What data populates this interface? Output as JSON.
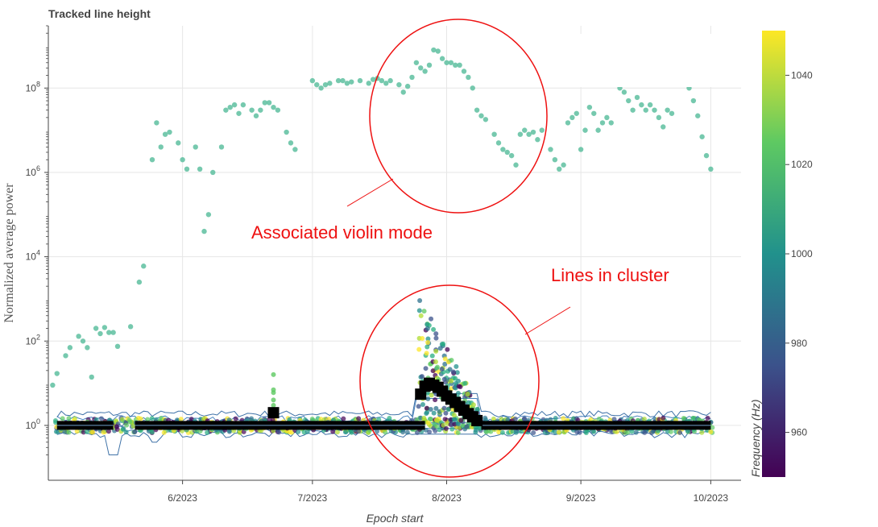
{
  "chart_data": {
    "type": "scatter",
    "title": "Tracked line height",
    "xlabel": "Epoch start",
    "ylabel": "Normalized average power",
    "y_scale": "log",
    "ylim": [
      0.05,
      3000000000.0
    ],
    "xlim": [
      "2023-05-01",
      "2023-10-08"
    ],
    "x_ticks": [
      {
        "date": "2023-06-01",
        "label": "6/2023"
      },
      {
        "date": "2023-07-01",
        "label": "7/2023"
      },
      {
        "date": "2023-08-01",
        "label": "8/2023"
      },
      {
        "date": "2023-09-01",
        "label": "9/2023"
      },
      {
        "date": "2023-10-01",
        "label": "10/2023"
      }
    ],
    "y_ticks": [
      {
        "value": 1,
        "base": "10",
        "exp": "0"
      },
      {
        "value": 100,
        "base": "10",
        "exp": "2"
      },
      {
        "value": 10000,
        "base": "10",
        "exp": "4"
      },
      {
        "value": 1000000,
        "base": "10",
        "exp": "6"
      },
      {
        "value": 100000000,
        "base": "10",
        "exp": "8"
      }
    ],
    "grid": true,
    "colorbar": {
      "label": "Frequency (Hz)",
      "range": [
        950,
        1050
      ],
      "ticks": [
        "960",
        "980",
        "1000",
        "1020",
        "1040"
      ],
      "colormap": [
        "#440154",
        "#3b528b",
        "#21918c",
        "#5ec962",
        "#fde725"
      ]
    },
    "violin_mode_series": {
      "color": "#5ec0a0",
      "points": [
        [
          "2023-05-02",
          9
        ],
        [
          "2023-05-03",
          17
        ],
        [
          "2023-05-05",
          45
        ],
        [
          "2023-05-06",
          70
        ],
        [
          "2023-05-08",
          130
        ],
        [
          "2023-05-09",
          100
        ],
        [
          "2023-05-10",
          70
        ],
        [
          "2023-05-11",
          14
        ],
        [
          "2023-05-12",
          200
        ],
        [
          "2023-05-13",
          150
        ],
        [
          "2023-05-14",
          210
        ],
        [
          "2023-05-15",
          160
        ],
        [
          "2023-05-16",
          160
        ],
        [
          "2023-05-17",
          75
        ],
        [
          "2023-05-20",
          220
        ],
        [
          "2023-05-22",
          2500
        ],
        [
          "2023-05-23",
          6000
        ],
        [
          "2023-05-25",
          2000000.0
        ],
        [
          "2023-05-26",
          15000000.0
        ],
        [
          "2023-05-27",
          4000000.0
        ],
        [
          "2023-05-28",
          8000000.0
        ],
        [
          "2023-05-29",
          9000000.0
        ],
        [
          "2023-05-31",
          5000000.0
        ],
        [
          "2023-06-01",
          2000000.0
        ],
        [
          "2023-06-02",
          1200000.0
        ],
        [
          "2023-06-04",
          4000000.0
        ],
        [
          "2023-06-05",
          1200000.0
        ],
        [
          "2023-06-06",
          40000.0
        ],
        [
          "2023-06-07",
          100000.0
        ],
        [
          "2023-06-08",
          1000000.0
        ],
        [
          "2023-06-10",
          4000000.0
        ],
        [
          "2023-06-11",
          30000000.0
        ],
        [
          "2023-06-12",
          35000000.0
        ],
        [
          "2023-06-13",
          40000000.0
        ],
        [
          "2023-06-14",
          25000000.0
        ],
        [
          "2023-06-15",
          40000000.0
        ],
        [
          "2023-06-17",
          30000000.0
        ],
        [
          "2023-06-18",
          22000000.0
        ],
        [
          "2023-06-19",
          30000000.0
        ],
        [
          "2023-06-20",
          45000000.0
        ],
        [
          "2023-06-21",
          45000000.0
        ],
        [
          "2023-06-22",
          35000000.0
        ],
        [
          "2023-06-23",
          30000000.0
        ],
        [
          "2023-06-25",
          9000000.0
        ],
        [
          "2023-06-26",
          5000000.0
        ],
        [
          "2023-06-27",
          3500000.0
        ],
        [
          "2023-07-01",
          150000000.0
        ],
        [
          "2023-07-02",
          120000000.0
        ],
        [
          "2023-07-03",
          100000000.0
        ],
        [
          "2023-07-04",
          120000000.0
        ],
        [
          "2023-07-05",
          130000000.0
        ],
        [
          "2023-07-07",
          150000000.0
        ],
        [
          "2023-07-08",
          150000000.0
        ],
        [
          "2023-07-09",
          130000000.0
        ],
        [
          "2023-07-10",
          140000000.0
        ],
        [
          "2023-07-12",
          150000000.0
        ],
        [
          "2023-07-14",
          130000000.0
        ],
        [
          "2023-07-15",
          160000000.0
        ],
        [
          "2023-07-16",
          170000000.0
        ],
        [
          "2023-07-17",
          150000000.0
        ],
        [
          "2023-07-18",
          130000000.0
        ],
        [
          "2023-07-19",
          150000000.0
        ],
        [
          "2023-07-21",
          120000000.0
        ],
        [
          "2023-07-22",
          80000000.0
        ],
        [
          "2023-07-23",
          110000000.0
        ],
        [
          "2023-07-24",
          180000000.0
        ],
        [
          "2023-07-25",
          400000000.0
        ],
        [
          "2023-07-26",
          300000000.0
        ],
        [
          "2023-07-27",
          250000000.0
        ],
        [
          "2023-07-28",
          350000000.0
        ],
        [
          "2023-07-29",
          800000000.0
        ],
        [
          "2023-07-30",
          750000000.0
        ],
        [
          "2023-07-31",
          500000000.0
        ],
        [
          "2023-08-01",
          400000000.0
        ],
        [
          "2023-08-02",
          400000000.0
        ],
        [
          "2023-08-03",
          350000000.0
        ],
        [
          "2023-08-04",
          350000000.0
        ],
        [
          "2023-08-05",
          250000000.0
        ],
        [
          "2023-08-06",
          180000000.0
        ],
        [
          "2023-08-07",
          100000000.0
        ],
        [
          "2023-08-08",
          30000000.0
        ],
        [
          "2023-08-09",
          22000000.0
        ],
        [
          "2023-08-10",
          18000000.0
        ],
        [
          "2023-08-12",
          8000000.0
        ],
        [
          "2023-08-13",
          5000000.0
        ],
        [
          "2023-08-14",
          3500000.0
        ],
        [
          "2023-08-15",
          3000000.0
        ],
        [
          "2023-08-16",
          2500000.0
        ],
        [
          "2023-08-17",
          1500000.0
        ],
        [
          "2023-08-18",
          8000000.0
        ],
        [
          "2023-08-19",
          10000000.0
        ],
        [
          "2023-08-20",
          8000000.0
        ],
        [
          "2023-08-21",
          9000000.0
        ],
        [
          "2023-08-22",
          6000000.0
        ],
        [
          "2023-08-23",
          10000000.0
        ],
        [
          "2023-08-25",
          3500000.0
        ],
        [
          "2023-08-26",
          2000000.0
        ],
        [
          "2023-08-27",
          1200000.0
        ],
        [
          "2023-08-28",
          1500000.0
        ],
        [
          "2023-08-29",
          15000000.0
        ],
        [
          "2023-08-30",
          20000000.0
        ],
        [
          "2023-08-31",
          25000000.0
        ],
        [
          "2023-09-01",
          3500000.0
        ],
        [
          "2023-09-02",
          10000000.0
        ],
        [
          "2023-09-03",
          35000000.0
        ],
        [
          "2023-09-04",
          25000000.0
        ],
        [
          "2023-09-05",
          10000000.0
        ],
        [
          "2023-09-06",
          15000000.0
        ],
        [
          "2023-09-07",
          20000000.0
        ],
        [
          "2023-09-08",
          15000000.0
        ],
        [
          "2023-09-10",
          100000000.0
        ],
        [
          "2023-09-11",
          80000000.0
        ],
        [
          "2023-09-12",
          50000000.0
        ],
        [
          "2023-09-13",
          30000000.0
        ],
        [
          "2023-09-14",
          60000000.0
        ],
        [
          "2023-09-15",
          40000000.0
        ],
        [
          "2023-09-16",
          30000000.0
        ],
        [
          "2023-09-17",
          40000000.0
        ],
        [
          "2023-09-18",
          30000000.0
        ],
        [
          "2023-09-19",
          20000000.0
        ],
        [
          "2023-09-20",
          12000000.0
        ],
        [
          "2023-09-21",
          30000000.0
        ],
        [
          "2023-09-22",
          25000000.0
        ],
        [
          "2023-09-26",
          100000000.0
        ],
        [
          "2023-09-27",
          50000000.0
        ],
        [
          "2023-09-28",
          22000000.0
        ],
        [
          "2023-09-29",
          7000000.0
        ],
        [
          "2023-09-30",
          2500000.0
        ],
        [
          "2023-10-01",
          1200000.0
        ]
      ]
    },
    "cluster_series": {
      "color": "#000000",
      "baseline": 1.0,
      "segments": [
        [
          "2023-05-03",
          "2023-05-16"
        ],
        [
          "2023-05-21",
          "2023-07-27"
        ],
        [
          "2023-08-09",
          "2023-10-01"
        ]
      ],
      "points": [
        [
          "2023-06-22",
          2.0
        ],
        [
          "2023-07-26",
          5.5
        ],
        [
          "2023-07-27",
          8.5
        ],
        [
          "2023-07-28",
          10
        ],
        [
          "2023-07-29",
          9
        ],
        [
          "2023-07-30",
          8
        ],
        [
          "2023-07-31",
          6.5
        ],
        [
          "2023-08-01",
          5
        ],
        [
          "2023-08-02",
          4.2
        ],
        [
          "2023-08-03",
          3.5
        ],
        [
          "2023-08-04",
          2.8
        ],
        [
          "2023-08-05",
          2.3
        ],
        [
          "2023-08-06",
          1.9
        ],
        [
          "2023-08-07",
          1.6
        ],
        [
          "2023-08-08",
          1.3
        ]
      ]
    },
    "annotations": [
      {
        "text": "Associated violin mode",
        "at": [
          "2023-06-15",
          8000
        ]
      },
      {
        "text": "Lines in cluster",
        "at": [
          "2023-08-25",
          1200
        ]
      }
    ]
  }
}
